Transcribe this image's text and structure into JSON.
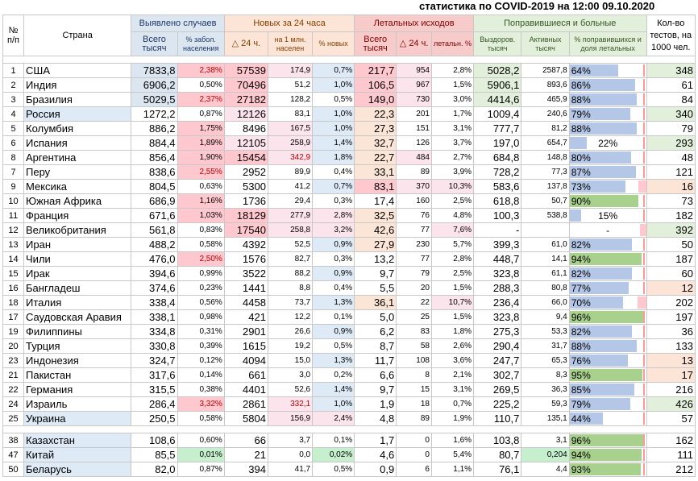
{
  "title": "статистика по COVID-2019 на 12:00 09.10.2020",
  "headers": {
    "num": "№ п/п",
    "country": "Страна",
    "detected": "Выявлено случаев",
    "new24": "Новых за 24 часа",
    "lethal": "Летальных исходов",
    "recovered": "Поправившиеся и больные",
    "tests": "Кол-во тестов, на 1000 чел.",
    "sub": {
      "total_k": "Всего тысяч",
      "pct_pop": "% забол. населения",
      "d24": "△ 24 ч.",
      "per_mln": "на 1 млн. населен",
      "pct_new": "% новых",
      "lethal_total": "Всего тысяч",
      "lethal_d24": "△ 24 ч.",
      "lethal_pct": "летальн. %",
      "recovered_k": "Выздоров. тысяч",
      "active_k": "Активных тысяч",
      "pct_recovered": "% поправившихся и доля летальных"
    }
  },
  "rows": [
    {
      "n": "1",
      "country": "США",
      "total": "7833,8",
      "pct_pop": "2,38%",
      "d24": "57539",
      "per_mln": "174,9",
      "pct_new": "0,7%",
      "l_total": "217,7",
      "l_d24": "954",
      "l_pct": "2,8%",
      "rec": "5028,2",
      "active": "2587,8",
      "pct_rec": "64%",
      "rec_frac": 0.64,
      "leth_frac": 0.028,
      "tests": "348"
    },
    {
      "n": "2",
      "country": "Индия",
      "total": "6906,2",
      "pct_pop": "0,50%",
      "d24": "70496",
      "per_mln": "51,2",
      "pct_new": "1,0%",
      "l_total": "106,5",
      "l_d24": "967",
      "l_pct": "1,5%",
      "rec": "5906,1",
      "active": "893,6",
      "pct_rec": "86%",
      "rec_frac": 0.86,
      "leth_frac": 0.015,
      "tests": "61"
    },
    {
      "n": "3",
      "country": "Бразилия",
      "total": "5029,5",
      "pct_pop": "2,37%",
      "d24": "27182",
      "per_mln": "128,2",
      "pct_new": "0,5%",
      "l_total": "149,0",
      "l_d24": "730",
      "l_pct": "3,0%",
      "rec": "4414,6",
      "active": "465,9",
      "pct_rec": "88%",
      "rec_frac": 0.88,
      "leth_frac": 0.03,
      "tests": "84"
    },
    {
      "n": "4",
      "country": "Россия",
      "total": "1272,2",
      "pct_pop": "0,87%",
      "d24": "12126",
      "per_mln": "83,1",
      "pct_new": "1,0%",
      "l_total": "22,3",
      "l_d24": "201",
      "l_pct": "1,7%",
      "rec": "1009,4",
      "active": "240,6",
      "pct_rec": "79%",
      "rec_frac": 0.79,
      "leth_frac": 0.017,
      "tests": "340"
    },
    {
      "n": "5",
      "country": "Колумбия",
      "total": "886,2",
      "pct_pop": "1,75%",
      "d24": "8496",
      "per_mln": "167,5",
      "pct_new": "1,0%",
      "l_total": "27,3",
      "l_d24": "151",
      "l_pct": "3,1%",
      "rec": "777,7",
      "active": "81,2",
      "pct_rec": "88%",
      "rec_frac": 0.88,
      "leth_frac": 0.031,
      "tests": "79"
    },
    {
      "n": "6",
      "country": "Испания",
      "total": "884,4",
      "pct_pop": "1,89%",
      "d24": "12105",
      "per_mln": "258,9",
      "pct_new": "1,4%",
      "l_total": "32,7",
      "l_d24": "126",
      "l_pct": "3,7%",
      "rec": "197,0",
      "active": "654,7",
      "pct_rec": "22%",
      "rec_frac": 0.22,
      "leth_frac": 0.037,
      "tests": "293"
    },
    {
      "n": "8",
      "country": "Аргентина",
      "total": "856,4",
      "pct_pop": "1,90%",
      "d24": "15454",
      "per_mln": "342,9",
      "pct_new": "1,8%",
      "l_total": "22,7",
      "l_d24": "484",
      "l_pct": "2,7%",
      "rec": "684,8",
      "active": "148,8",
      "pct_rec": "80%",
      "rec_frac": 0.8,
      "leth_frac": 0.027,
      "tests": "48"
    },
    {
      "n": "7",
      "country": "Перу",
      "total": "838,6",
      "pct_pop": "2,55%",
      "d24": "2952",
      "per_mln": "89,9",
      "pct_new": "0,4%",
      "l_total": "33,1",
      "l_d24": "89",
      "l_pct": "3,9%",
      "rec": "728,2",
      "active": "77,3",
      "pct_rec": "87%",
      "rec_frac": 0.87,
      "leth_frac": 0.039,
      "tests": "121"
    },
    {
      "n": "9",
      "country": "Мексика",
      "total": "804,5",
      "pct_pop": "0,63%",
      "d24": "5300",
      "per_mln": "41,2",
      "pct_new": "0,7%",
      "l_total": "83,1",
      "l_d24": "370",
      "l_pct": "10,3%",
      "rec": "583,6",
      "active": "137,8",
      "pct_rec": "73%",
      "rec_frac": 0.73,
      "leth_frac": 0.103,
      "tests": "16"
    },
    {
      "n": "10",
      "country": "Южная Африка",
      "total": "686,9",
      "pct_pop": "1,16%",
      "d24": "1736",
      "per_mln": "29,4",
      "pct_new": "0,3%",
      "l_total": "17,4",
      "l_d24": "160",
      "l_pct": "2,5%",
      "rec": "618,8",
      "active": "50,7",
      "pct_rec": "90%",
      "rec_frac": 0.9,
      "leth_frac": 0.025,
      "tests": "73"
    },
    {
      "n": "11",
      "country": "Франция",
      "total": "671,6",
      "pct_pop": "1,03%",
      "d24": "18129",
      "per_mln": "277,9",
      "pct_new": "2,8%",
      "l_total": "32,5",
      "l_d24": "76",
      "l_pct": "4,8%",
      "rec": "100,3",
      "active": "538,8",
      "pct_rec": "15%",
      "rec_frac": 0.15,
      "leth_frac": 0.048,
      "tests": "182"
    },
    {
      "n": "12",
      "country": "Великобритания",
      "total": "561,8",
      "pct_pop": "0,83%",
      "d24": "17540",
      "per_mln": "258,8",
      "pct_new": "3,2%",
      "l_total": "42,6",
      "l_d24": "77",
      "l_pct": "7,6%",
      "rec": "-",
      "active": "",
      "pct_rec": "-",
      "rec_frac": 0,
      "leth_frac": 0.076,
      "tests": "392"
    },
    {
      "n": "13",
      "country": "Иран",
      "total": "488,2",
      "pct_pop": "0,58%",
      "d24": "4392",
      "per_mln": "52,5",
      "pct_new": "0,9%",
      "l_total": "27,9",
      "l_d24": "230",
      "l_pct": "5,7%",
      "rec": "399,3",
      "active": "61,0",
      "pct_rec": "82%",
      "rec_frac": 0.82,
      "leth_frac": 0.057,
      "tests": "50"
    },
    {
      "n": "14",
      "country": "Чили",
      "total": "476,0",
      "pct_pop": "2,50%",
      "d24": "1576",
      "per_mln": "82,7",
      "pct_new": "0,3%",
      "l_total": "13,2",
      "l_d24": "77",
      "l_pct": "2,8%",
      "rec": "448,7",
      "active": "14,1",
      "pct_rec": "94%",
      "rec_frac": 0.94,
      "leth_frac": 0.028,
      "tests": "187"
    },
    {
      "n": "15",
      "country": "Ирак",
      "total": "394,6",
      "pct_pop": "0,99%",
      "d24": "3522",
      "per_mln": "88,2",
      "pct_new": "0,9%",
      "l_total": "9,7",
      "l_d24": "79",
      "l_pct": "2,5%",
      "rec": "323,8",
      "active": "61,1",
      "pct_rec": "82%",
      "rec_frac": 0.82,
      "leth_frac": 0.025,
      "tests": "60"
    },
    {
      "n": "16",
      "country": "Бангладеш",
      "total": "374,6",
      "pct_pop": "0,23%",
      "d24": "1441",
      "per_mln": "8,8",
      "pct_new": "0,4%",
      "l_total": "5,5",
      "l_d24": "20",
      "l_pct": "1,5%",
      "rec": "288,3",
      "active": "80,8",
      "pct_rec": "77%",
      "rec_frac": 0.77,
      "leth_frac": 0.015,
      "tests": "12"
    },
    {
      "n": "18",
      "country": "Италия",
      "total": "338,4",
      "pct_pop": "0,56%",
      "d24": "4458",
      "per_mln": "73,7",
      "pct_new": "1,3%",
      "l_total": "36,1",
      "l_d24": "22",
      "l_pct": "10,7%",
      "rec": "236,4",
      "active": "66,0",
      "pct_rec": "70%",
      "rec_frac": 0.7,
      "leth_frac": 0.107,
      "tests": "202"
    },
    {
      "n": "17",
      "country": "Саудовская Аравия",
      "total": "338,1",
      "pct_pop": "0,98%",
      "d24": "421",
      "per_mln": "12,2",
      "pct_new": "0,1%",
      "l_total": "5,0",
      "l_d24": "25",
      "l_pct": "1,5%",
      "rec": "323,8",
      "active": "9,4",
      "pct_rec": "96%",
      "rec_frac": 0.96,
      "leth_frac": 0.015,
      "tests": "197"
    },
    {
      "n": "19",
      "country": "Филиппины",
      "total": "334,8",
      "pct_pop": "0,31%",
      "d24": "2901",
      "per_mln": "26,6",
      "pct_new": "0,9%",
      "l_total": "6,2",
      "l_d24": "83",
      "l_pct": "1,8%",
      "rec": "275,3",
      "active": "53,3",
      "pct_rec": "82%",
      "rec_frac": 0.82,
      "leth_frac": 0.018,
      "tests": "36"
    },
    {
      "n": "20",
      "country": "Турция",
      "total": "330,8",
      "pct_pop": "0,39%",
      "d24": "1615",
      "per_mln": "19,2",
      "pct_new": "0,5%",
      "l_total": "8,7",
      "l_d24": "58",
      "l_pct": "2,6%",
      "rec": "290,4",
      "active": "31,7",
      "pct_rec": "88%",
      "rec_frac": 0.88,
      "leth_frac": 0.026,
      "tests": "133"
    },
    {
      "n": "23",
      "country": "Индонезия",
      "total": "324,7",
      "pct_pop": "0,12%",
      "d24": "4094",
      "per_mln": "15,0",
      "pct_new": "1,3%",
      "l_total": "11,7",
      "l_d24": "108",
      "l_pct": "3,6%",
      "rec": "247,7",
      "active": "65,3",
      "pct_rec": "76%",
      "rec_frac": 0.76,
      "leth_frac": 0.036,
      "tests": "13"
    },
    {
      "n": "21",
      "country": "Пакистан",
      "total": "317,6",
      "pct_pop": "0,14%",
      "d24": "661",
      "per_mln": "3,0",
      "pct_new": "0,2%",
      "l_total": "6,6",
      "l_d24": "8",
      "l_pct": "2,1%",
      "rec": "302,7",
      "active": "8,3",
      "pct_rec": "95%",
      "rec_frac": 0.95,
      "leth_frac": 0.021,
      "tests": "17"
    },
    {
      "n": "22",
      "country": "Германия",
      "total": "315,5",
      "pct_pop": "0,38%",
      "d24": "4401",
      "per_mln": "52,6",
      "pct_new": "1,4%",
      "l_total": "9,7",
      "l_d24": "15",
      "l_pct": "3,1%",
      "rec": "269,5",
      "active": "36,3",
      "pct_rec": "85%",
      "rec_frac": 0.85,
      "leth_frac": 0.031,
      "tests": "216"
    },
    {
      "n": "24",
      "country": "Израиль",
      "total": "286,4",
      "pct_pop": "3,32%",
      "d24": "2861",
      "per_mln": "332,1",
      "pct_new": "1,0%",
      "l_total": "1,9",
      "l_d24": "18",
      "l_pct": "0,7%",
      "rec": "225,2",
      "active": "59,3",
      "pct_rec": "79%",
      "rec_frac": 0.79,
      "leth_frac": 0.007,
      "tests": "426"
    },
    {
      "n": "25",
      "country": "Украина",
      "total": "250,5",
      "pct_pop": "0,58%",
      "d24": "5804",
      "per_mln": "156,9",
      "pct_new": "2,4%",
      "l_total": "4,8",
      "l_d24": "89",
      "l_pct": "1,9%",
      "rec": "110,7",
      "active": "135,1",
      "pct_rec": "44%",
      "rec_frac": 0.44,
      "leth_frac": 0.019,
      "tests": "57"
    }
  ],
  "extra_rows": [
    {
      "n": "38",
      "country": "Казахстан",
      "total": "108,6",
      "pct_pop": "0,60%",
      "d24": "66",
      "per_mln": "3,7",
      "pct_new": "0,1%",
      "l_total": "1,7",
      "l_d24": "0",
      "l_pct": "1,6%",
      "rec": "103,8",
      "active": "3,1",
      "pct_rec": "96%",
      "rec_frac": 0.96,
      "leth_frac": 0.016,
      "tests": "162"
    },
    {
      "n": "47",
      "country": "Китай",
      "total": "85,5",
      "pct_pop": "0,01%",
      "d24": "21",
      "per_mln": "0,0",
      "pct_new": "0,02%",
      "l_total": "4,6",
      "l_d24": "0",
      "l_pct": "5,4%",
      "rec": "80,7",
      "active": "0,204",
      "pct_rec": "94%",
      "rec_frac": 0.94,
      "leth_frac": 0.054,
      "tests": "111"
    },
    {
      "n": "50",
      "country": "Беларусь",
      "total": "82,0",
      "pct_pop": "0,87%",
      "d24": "394",
      "per_mln": "41,7",
      "pct_new": "0,5%",
      "l_total": "0,9",
      "l_d24": "6",
      "l_pct": "1,1%",
      "rec": "76,1",
      "active": "4,4",
      "pct_rec": "93%",
      "rec_frac": 0.93,
      "leth_frac": 0.011,
      "tests": "212"
    }
  ]
}
